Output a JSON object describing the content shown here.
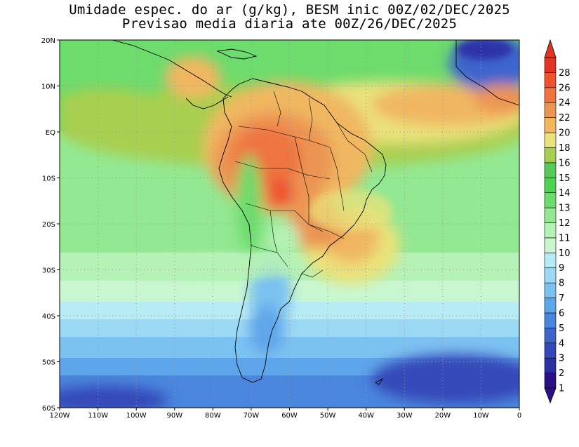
{
  "title": {
    "line1": "Umidade espec. do ar (g/kg), BESM inic 00Z/02/DEC/2025",
    "line2": "Previsao media diaria ate 00Z/26/DEC/2025"
  },
  "map": {
    "lon_ticks": [
      "120W",
      "110W",
      "100W",
      "90W",
      "80W",
      "70W",
      "60W",
      "50W",
      "40W",
      "30W",
      "20W",
      "10W",
      "0"
    ],
    "lat_ticks": [
      "20N",
      "10N",
      "EQ",
      "10S",
      "20S",
      "30S",
      "40S",
      "50S",
      "60S"
    ],
    "lon_range": [
      -120,
      0
    ],
    "lat_range": [
      -60,
      20
    ],
    "grid": "dotted",
    "field": "specific humidity (g/kg)"
  },
  "colorbar": {
    "labels": [
      "1",
      "2",
      "3",
      "4",
      "5",
      "6",
      "7",
      "8",
      "9",
      "10",
      "11",
      "12",
      "13",
      "14",
      "15",
      "16",
      "18",
      "20",
      "22",
      "24",
      "26",
      "28"
    ],
    "colors": [
      "#2a0f86",
      "#2b2fa3",
      "#3548b8",
      "#3d65cc",
      "#4a86dd",
      "#5ea6ea",
      "#7cc2f1",
      "#9bd8f4",
      "#b8ecf5",
      "#c8f7cf",
      "#b5f2b5",
      "#93e892",
      "#6cdc6c",
      "#4dd34f",
      "#5ac85a",
      "#a8cf50",
      "#eae27a",
      "#f0b760",
      "#ec9452",
      "#ef7440",
      "#ee5330",
      "#e23422"
    ]
  }
}
